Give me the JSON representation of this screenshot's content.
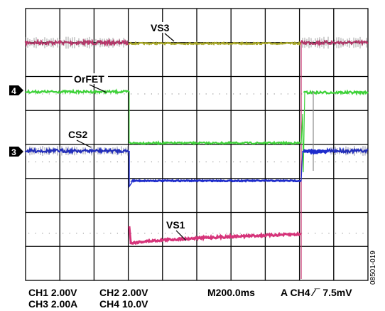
{
  "labels": {
    "vs3": "VS3",
    "orfet": "OrFET",
    "cs2": "CS2",
    "vs1": "VS1",
    "marker_4": "4",
    "marker_3": "3"
  },
  "settings": {
    "row1": {
      "ch1": "CH1  2.00V",
      "ch2": "CH2  2.00V",
      "timebase": "M200.0ms",
      "trigger": "A  CH4  ∕¯ 7.5mV"
    },
    "row2": {
      "ch3": "CH3  2.00A",
      "ch4": "CH4  10.0V"
    }
  },
  "figure_id": "08501-019",
  "colors": {
    "vs3_pre": "#c8326e",
    "vs3_on": "#a8a82a",
    "orfet": "#3fd23a",
    "cs2": "#1e2ccc",
    "vs1": "#d6347a",
    "grid": "#000000",
    "dots": "#9a9a9a"
  }
}
